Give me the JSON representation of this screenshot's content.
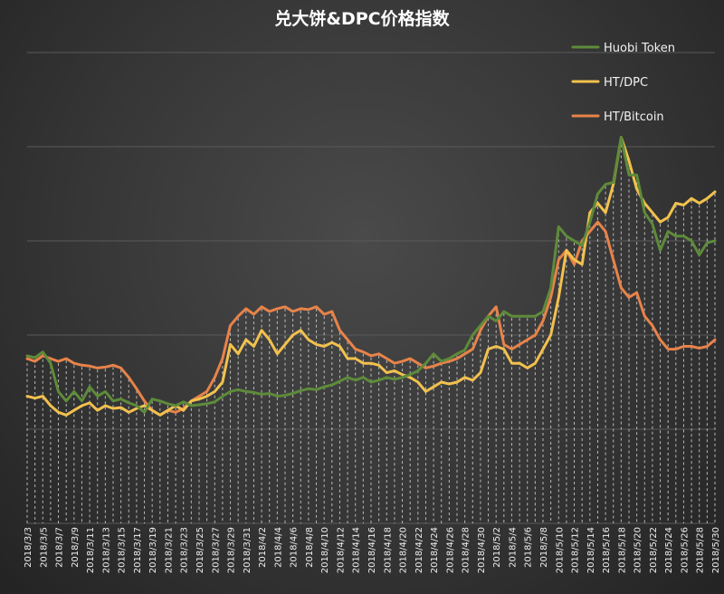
{
  "chart_data": {
    "type": "line",
    "title": "兑大饼&DPC价格指数",
    "xlabel": "",
    "ylabel": "",
    "grid": true,
    "legend_position": "top-right",
    "x": [
      "2018/3/3",
      "2018/3/4",
      "2018/3/5",
      "2018/3/6",
      "2018/3/7",
      "2018/3/8",
      "2018/3/9",
      "2018/3/10",
      "2018/3/11",
      "2018/3/12",
      "2018/3/13",
      "2018/3/14",
      "2018/3/15",
      "2018/3/16",
      "2018/3/17",
      "2018/3/18",
      "2018/3/19",
      "2018/3/20",
      "2018/3/21",
      "2018/3/22",
      "2018/3/23",
      "2018/3/24",
      "2018/3/25",
      "2018/3/26",
      "2018/3/27",
      "2018/3/28",
      "2018/3/29",
      "2018/3/30",
      "2018/3/31",
      "2018/4/1",
      "2018/4/2",
      "2018/4/3",
      "2018/4/4",
      "2018/4/5",
      "2018/4/6",
      "2018/4/7",
      "2018/4/8",
      "2018/4/9",
      "2018/4/10",
      "2018/4/11",
      "2018/4/12",
      "2018/4/13",
      "2018/4/14",
      "2018/4/15",
      "2018/4/16",
      "2018/4/17",
      "2018/4/18",
      "2018/4/19",
      "2018/4/20",
      "2018/4/21",
      "2018/4/22",
      "2018/4/23",
      "2018/4/24",
      "2018/4/25",
      "2018/4/26",
      "2018/4/27",
      "2018/4/28",
      "2018/4/29",
      "2018/4/30",
      "2018/5/1",
      "2018/5/2",
      "2018/5/3",
      "2018/5/4",
      "2018/5/5",
      "2018/5/6",
      "2018/5/7",
      "2018/5/8",
      "2018/5/9",
      "2018/5/10",
      "2018/5/11",
      "2018/5/12",
      "2018/5/13",
      "2018/5/14",
      "2018/5/15",
      "2018/5/16",
      "2018/5/17",
      "2018/5/18",
      "2018/5/19",
      "2018/5/20",
      "2018/5/21",
      "2018/5/22",
      "2018/5/23",
      "2018/5/24",
      "2018/5/25",
      "2018/5/26",
      "2018/5/27",
      "2018/5/28",
      "2018/5/29",
      "2018/5/30"
    ],
    "tick_labels": [
      "2018/3/3",
      "2018/3/5",
      "2018/3/7",
      "2018/3/9",
      "2018/3/11",
      "2018/3/13",
      "2018/3/15",
      "2018/3/17",
      "2018/3/19",
      "2018/3/21",
      "2018/3/23",
      "2018/3/25",
      "2018/3/27",
      "2018/3/29",
      "2018/3/31",
      "2018/4/2",
      "2018/4/4",
      "2018/4/6",
      "2018/4/8",
      "2018/4/10",
      "2018/4/12",
      "2018/4/14",
      "2018/4/16",
      "2018/4/18",
      "2018/4/20",
      "2018/4/22",
      "2018/4/24",
      "2018/4/26",
      "2018/4/28",
      "2018/4/30",
      "2018/5/2",
      "2018/5/4",
      "2018/5/6",
      "2018/5/8",
      "2018/5/10",
      "2018/5/12",
      "2018/5/14",
      "2018/5/16",
      "2018/5/18",
      "2018/5/20",
      "2018/5/22",
      "2018/5/24",
      "2018/5/26",
      "2018/5/28",
      "2018/5/30"
    ],
    "ylim": [
      0,
      5
    ],
    "series": [
      {
        "name": "Huobi Token",
        "color": "#5e8b3a",
        "values": [
          1.78,
          1.76,
          1.82,
          1.7,
          1.4,
          1.3,
          1.4,
          1.3,
          1.45,
          1.35,
          1.4,
          1.3,
          1.32,
          1.28,
          1.25,
          1.18,
          1.32,
          1.3,
          1.27,
          1.25,
          1.29,
          1.25,
          1.26,
          1.27,
          1.29,
          1.35,
          1.4,
          1.42,
          1.4,
          1.39,
          1.37,
          1.38,
          1.35,
          1.36,
          1.38,
          1.41,
          1.43,
          1.42,
          1.45,
          1.47,
          1.51,
          1.55,
          1.52,
          1.55,
          1.5,
          1.52,
          1.55,
          1.53,
          1.55,
          1.58,
          1.62,
          1.7,
          1.8,
          1.72,
          1.75,
          1.8,
          1.84,
          2.0,
          2.1,
          2.2,
          2.15,
          2.25,
          2.2,
          2.2,
          2.2,
          2.2,
          2.25,
          2.5,
          3.15,
          3.05,
          3.0,
          2.95,
          3.2,
          3.5,
          3.6,
          3.62,
          4.1,
          3.7,
          3.7,
          3.3,
          3.18,
          2.9,
          3.1,
          3.05,
          3.05,
          3.0,
          2.85,
          2.98,
          3.0
        ]
      },
      {
        "name": "HT/DPC",
        "color": "#f2c14e",
        "values": [
          1.35,
          1.33,
          1.35,
          1.25,
          1.18,
          1.15,
          1.2,
          1.25,
          1.28,
          1.2,
          1.25,
          1.22,
          1.23,
          1.18,
          1.22,
          1.25,
          1.2,
          1.15,
          1.2,
          1.25,
          1.2,
          1.3,
          1.32,
          1.35,
          1.4,
          1.5,
          1.9,
          1.8,
          1.95,
          1.88,
          2.05,
          1.95,
          1.8,
          1.9,
          2.0,
          2.05,
          1.95,
          1.9,
          1.88,
          1.92,
          1.88,
          1.75,
          1.75,
          1.7,
          1.7,
          1.68,
          1.6,
          1.62,
          1.58,
          1.55,
          1.5,
          1.4,
          1.45,
          1.5,
          1.48,
          1.5,
          1.55,
          1.52,
          1.6,
          1.85,
          1.88,
          1.85,
          1.7,
          1.7,
          1.65,
          1.7,
          1.85,
          2.0,
          2.4,
          2.9,
          2.8,
          2.75,
          3.3,
          3.4,
          3.3,
          3.6,
          4.1,
          3.85,
          3.55,
          3.4,
          3.3,
          3.2,
          3.25,
          3.4,
          3.38,
          3.45,
          3.4,
          3.45,
          3.52
        ]
      },
      {
        "name": "HT/Bitcoin",
        "color": "#e8834a",
        "values": [
          1.75,
          1.72,
          1.78,
          1.75,
          1.72,
          1.75,
          1.7,
          1.68,
          1.67,
          1.65,
          1.66,
          1.68,
          1.65,
          1.55,
          1.43,
          1.3,
          1.2,
          1.15,
          1.2,
          1.18,
          1.22,
          1.3,
          1.35,
          1.4,
          1.55,
          1.75,
          2.1,
          2.2,
          2.28,
          2.22,
          2.3,
          2.25,
          2.28,
          2.3,
          2.25,
          2.28,
          2.27,
          2.3,
          2.22,
          2.25,
          2.05,
          1.95,
          1.85,
          1.82,
          1.78,
          1.8,
          1.75,
          1.7,
          1.72,
          1.75,
          1.7,
          1.65,
          1.67,
          1.7,
          1.72,
          1.75,
          1.8,
          1.85,
          2.05,
          2.2,
          2.3,
          1.9,
          1.85,
          1.9,
          1.95,
          2.0,
          2.15,
          2.4,
          2.8,
          2.9,
          2.75,
          3.0,
          3.1,
          3.2,
          3.1,
          2.8,
          2.5,
          2.4,
          2.45,
          2.2,
          2.1,
          1.95,
          1.85,
          1.85,
          1.88,
          1.88,
          1.86,
          1.88,
          1.95
        ]
      }
    ]
  }
}
